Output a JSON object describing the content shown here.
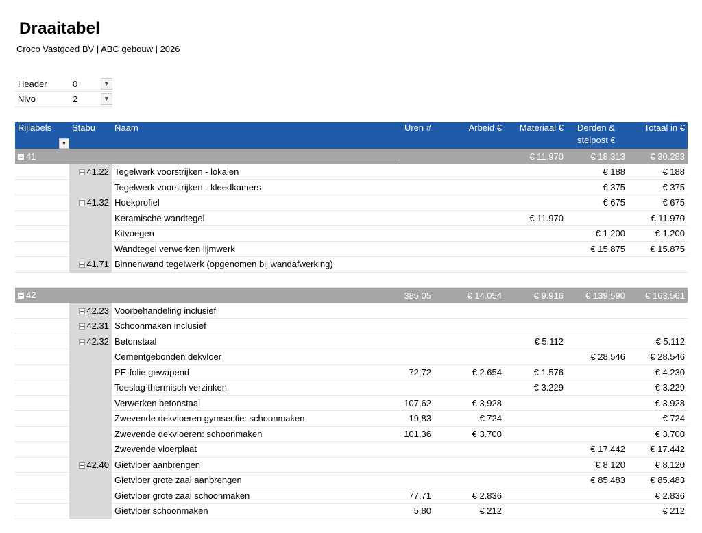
{
  "title": "Draaitabel",
  "subtitle": "Croco Vastgoed BV | ABC gebouw | 2026",
  "filters": [
    {
      "label": "Header",
      "value": "0"
    },
    {
      "label": "Nivo",
      "value": "2"
    }
  ],
  "columns": {
    "rijlabels": "Rijlabels",
    "stabu": "Stabu",
    "naam": "Naam",
    "uren": "Uren #",
    "arbeid": "Arbeid €",
    "materiaal": "Materiaal €",
    "derden_l1": "Derden &",
    "derden_l2": "stelpost €",
    "totaal": "Totaal in €"
  },
  "groups": [
    {
      "label": "41",
      "uren": "",
      "arbeid": "",
      "materiaal": "€ 11.970",
      "derden": "€ 18.313",
      "totaal": "€ 30.283",
      "rows": [
        {
          "stabu": "41.22",
          "naam": "Tegelwerk voorstrijken - lokalen",
          "uren": "",
          "arbeid": "",
          "materiaal": "",
          "derden": "€ 188",
          "totaal": "€ 188"
        },
        {
          "stabu": "",
          "naam": "Tegelwerk voorstrijken - kleedkamers",
          "uren": "",
          "arbeid": "",
          "materiaal": "",
          "derden": "€ 375",
          "totaal": "€ 375"
        },
        {
          "stabu": "41.32",
          "naam": "Hoekprofiel",
          "uren": "",
          "arbeid": "",
          "materiaal": "",
          "derden": "€ 675",
          "totaal": "€ 675"
        },
        {
          "stabu": "",
          "naam": "Keramische wandtegel",
          "uren": "",
          "arbeid": "",
          "materiaal": "€ 11.970",
          "derden": "",
          "totaal": "€ 11.970"
        },
        {
          "stabu": "",
          "naam": "Kitvoegen",
          "uren": "",
          "arbeid": "",
          "materiaal": "",
          "derden": "€ 1.200",
          "totaal": "€ 1.200"
        },
        {
          "stabu": "",
          "naam": "Wandtegel verwerken lijmwerk",
          "uren": "",
          "arbeid": "",
          "materiaal": "",
          "derden": "€ 15.875",
          "totaal": "€ 15.875"
        },
        {
          "stabu": "41.71",
          "naam": "Binnenwand tegelwerk (opgenomen bij wandafwerking)",
          "uren": "",
          "arbeid": "",
          "materiaal": "",
          "derden": "",
          "totaal": ""
        }
      ]
    },
    {
      "label": "42",
      "uren": "385,05",
      "arbeid": "€ 14.054",
      "materiaal": "€ 9.916",
      "derden": "€ 139.590",
      "totaal": "€ 163.561",
      "rows": [
        {
          "stabu": "42.23",
          "naam": "Voorbehandeling inclusief",
          "uren": "",
          "arbeid": "",
          "materiaal": "",
          "derden": "",
          "totaal": ""
        },
        {
          "stabu": "42.31",
          "naam": "Schoonmaken inclusief",
          "uren": "",
          "arbeid": "",
          "materiaal": "",
          "derden": "",
          "totaal": ""
        },
        {
          "stabu": "42.32",
          "naam": "Betonstaal",
          "uren": "",
          "arbeid": "",
          "materiaal": "€ 5.112",
          "derden": "",
          "totaal": "€ 5.112"
        },
        {
          "stabu": "",
          "naam": "Cementgebonden dekvloer",
          "uren": "",
          "arbeid": "",
          "materiaal": "",
          "derden": "€ 28.546",
          "totaal": "€ 28.546"
        },
        {
          "stabu": "",
          "naam": "PE-folie gewapend",
          "uren": "72,72",
          "arbeid": "€ 2.654",
          "materiaal": "€ 1.576",
          "derden": "",
          "totaal": "€ 4.230"
        },
        {
          "stabu": "",
          "naam": "Toeslag thermisch verzinken",
          "uren": "",
          "arbeid": "",
          "materiaal": "€ 3.229",
          "derden": "",
          "totaal": "€ 3.229"
        },
        {
          "stabu": "",
          "naam": "Verwerken betonstaal",
          "uren": "107,62",
          "arbeid": "€ 3.928",
          "materiaal": "",
          "derden": "",
          "totaal": "€ 3.928"
        },
        {
          "stabu": "",
          "naam": "Zwevende dekvloeren gymsectie: schoonmaken",
          "uren": "19,83",
          "arbeid": "€ 724",
          "materiaal": "",
          "derden": "",
          "totaal": "€ 724"
        },
        {
          "stabu": "",
          "naam": "Zwevende dekvloeren: schoonmaken",
          "uren": "101,36",
          "arbeid": "€ 3.700",
          "materiaal": "",
          "derden": "",
          "totaal": "€ 3.700"
        },
        {
          "stabu": "",
          "naam": "Zwevende vloerplaat",
          "uren": "",
          "arbeid": "",
          "materiaal": "",
          "derden": "€ 17.442",
          "totaal": "€ 17.442"
        },
        {
          "stabu": "42.40",
          "naam": "Gietvloer aanbrengen",
          "uren": "",
          "arbeid": "",
          "materiaal": "",
          "derden": "€ 8.120",
          "totaal": "€ 8.120"
        },
        {
          "stabu": "",
          "naam": "Gietvloer grote zaal aanbrengen",
          "uren": "",
          "arbeid": "",
          "materiaal": "",
          "derden": "€ 85.483",
          "totaal": "€ 85.483"
        },
        {
          "stabu": "",
          "naam": "Gietvloer grote zaal schoonmaken",
          "uren": "77,71",
          "arbeid": "€ 2.836",
          "materiaal": "",
          "derden": "",
          "totaal": "€ 2.836"
        },
        {
          "stabu": "",
          "naam": "Gietvloer schoonmaken",
          "uren": "5,80",
          "arbeid": "€ 212",
          "materiaal": "",
          "derden": "",
          "totaal": "€ 212"
        }
      ]
    }
  ]
}
